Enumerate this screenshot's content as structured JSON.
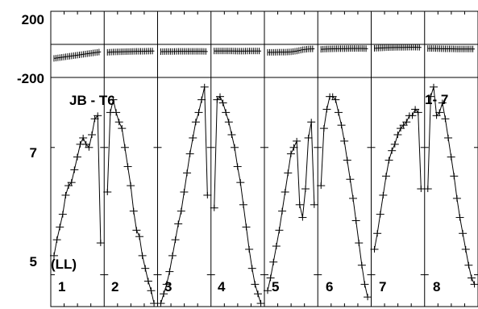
{
  "chart_data": [
    {
      "type": "line",
      "panel": "top",
      "yticks": [
        "200",
        "-200"
      ],
      "ylim": [
        -200,
        200
      ],
      "reference_line": 0,
      "segments": [
        {
          "label": "1",
          "values": [
            -85,
            -80,
            -75,
            -70,
            -65,
            -60,
            -55,
            -50,
            -45
          ]
        },
        {
          "label": "2",
          "values": [
            -48,
            -46,
            -45,
            -44,
            -43,
            -42,
            -42,
            -41,
            -40
          ]
        },
        {
          "label": "3",
          "values": [
            -44,
            -43,
            -43,
            -42,
            -42,
            -42,
            -42,
            -42,
            -43
          ]
        },
        {
          "label": "4",
          "values": [
            -40,
            -40,
            -40,
            -40,
            -41,
            -41,
            -40,
            -40,
            -40
          ]
        },
        {
          "label": "5",
          "values": [
            -48,
            -48,
            -47,
            -47,
            -45,
            -40,
            -32,
            -28,
            -27
          ]
        },
        {
          "label": "6",
          "values": [
            -30,
            -28,
            -27,
            -26,
            -26,
            -25,
            -25,
            -25,
            -26
          ]
        },
        {
          "label": "7",
          "values": [
            -24,
            -22,
            -20,
            -19,
            -18,
            -18,
            -17,
            -17,
            -18
          ]
        },
        {
          "label": "8",
          "values": [
            -25,
            -25,
            -26,
            -27,
            -27,
            -28,
            -28,
            -28,
            -28
          ]
        }
      ]
    },
    {
      "type": "line",
      "panel": "bottom",
      "title": "JB - T6",
      "annotation": "1- 7",
      "ylabel": "(LL)",
      "yticks": [
        "7",
        "5"
      ],
      "ylim": [
        4.5,
        8.1
      ],
      "segments": [
        {
          "label": "1",
          "x": [
            0,
            0.06,
            0.12,
            0.18,
            0.24,
            0.3,
            0.36,
            0.42,
            0.48,
            0.54,
            0.6,
            0.66,
            0.72,
            0.78,
            0.84,
            0.9,
            0.96
          ],
          "y": [
            5.3,
            5.55,
            5.75,
            5.95,
            6.25,
            6.4,
            6.45,
            6.65,
            6.85,
            7.05,
            7.15,
            7.05,
            7.0,
            7.2,
            7.45,
            7.5,
            5.5
          ]
        },
        {
          "label": "2",
          "x": [
            0,
            0.06,
            0.12,
            0.18,
            0.24,
            0.3,
            0.36,
            0.42,
            0.48,
            0.54,
            0.6,
            0.66,
            0.72,
            0.78,
            0.84,
            0.9,
            0.96
          ],
          "y": [
            6.3,
            7.55,
            7.75,
            7.55,
            7.4,
            7.3,
            7.0,
            6.7,
            6.4,
            6.0,
            5.7,
            5.6,
            5.3,
            5.1,
            4.9,
            4.75,
            4.55
          ]
        },
        {
          "label": "3",
          "x": [
            0,
            0.06,
            0.12,
            0.18,
            0.24,
            0.3,
            0.36,
            0.42,
            0.48,
            0.54,
            0.6,
            0.66,
            0.72,
            0.78,
            0.84,
            0.9,
            0.96
          ],
          "y": [
            4.55,
            4.7,
            4.85,
            5.05,
            5.3,
            5.55,
            5.8,
            6.0,
            6.3,
            6.6,
            6.9,
            7.15,
            7.4,
            7.55,
            7.75,
            7.95,
            6.25
          ]
        },
        {
          "label": "4",
          "x": [
            0,
            0.06,
            0.12,
            0.18,
            0.24,
            0.3,
            0.36,
            0.42,
            0.48,
            0.54,
            0.6,
            0.66,
            0.72,
            0.78,
            0.84,
            0.9,
            0.96
          ],
          "y": [
            6.05,
            7.75,
            7.8,
            7.7,
            7.55,
            7.4,
            7.2,
            7.0,
            6.7,
            6.45,
            6.1,
            5.75,
            5.4,
            5.1,
            4.85,
            4.7,
            4.55
          ]
        },
        {
          "label": "5",
          "x": [
            0,
            0.06,
            0.12,
            0.18,
            0.24,
            0.3,
            0.36,
            0.42,
            0.48,
            0.54,
            0.6,
            0.66,
            0.72,
            0.78,
            0.84,
            0.9,
            0.96
          ],
          "y": [
            4.75,
            4.95,
            5.2,
            5.45,
            5.7,
            6.0,
            6.3,
            6.6,
            6.9,
            7.0,
            7.1,
            6.1,
            5.9,
            6.35,
            7.15,
            7.4,
            6.1
          ]
        },
        {
          "label": "6",
          "x": [
            0,
            0.06,
            0.12,
            0.18,
            0.24,
            0.3,
            0.36,
            0.42,
            0.48,
            0.54,
            0.6,
            0.66,
            0.72,
            0.78,
            0.84,
            0.9,
            0.96
          ],
          "y": [
            6.4,
            7.3,
            7.6,
            7.8,
            7.8,
            7.75,
            7.55,
            7.35,
            7.1,
            6.8,
            6.5,
            6.2,
            5.85,
            5.5,
            5.15,
            4.85,
            4.65
          ]
        },
        {
          "label": "7",
          "x": [
            0,
            0.06,
            0.12,
            0.18,
            0.24,
            0.3,
            0.36,
            0.42,
            0.48,
            0.54,
            0.6,
            0.66,
            0.72,
            0.78,
            0.84,
            0.9,
            0.96
          ],
          "y": [
            5.4,
            5.65,
            5.95,
            6.25,
            6.55,
            6.8,
            6.95,
            7.05,
            7.2,
            7.3,
            7.35,
            7.4,
            7.5,
            7.5,
            7.6,
            7.55,
            6.35
          ]
        },
        {
          "label": "8",
          "x": [
            0,
            0.06,
            0.12,
            0.18,
            0.24,
            0.3,
            0.36,
            0.42,
            0.48,
            0.54,
            0.6,
            0.66,
            0.72,
            0.78,
            0.84,
            0.9,
            0.96
          ],
          "y": [
            6.35,
            7.8,
            7.95,
            7.5,
            7.55,
            7.7,
            7.45,
            7.15,
            6.85,
            6.55,
            6.2,
            5.9,
            5.65,
            5.4,
            5.15,
            4.95,
            4.85
          ]
        }
      ]
    }
  ],
  "panel_numbers": [
    "1",
    "2",
    "3",
    "4",
    "5",
    "6",
    "7",
    "8"
  ]
}
